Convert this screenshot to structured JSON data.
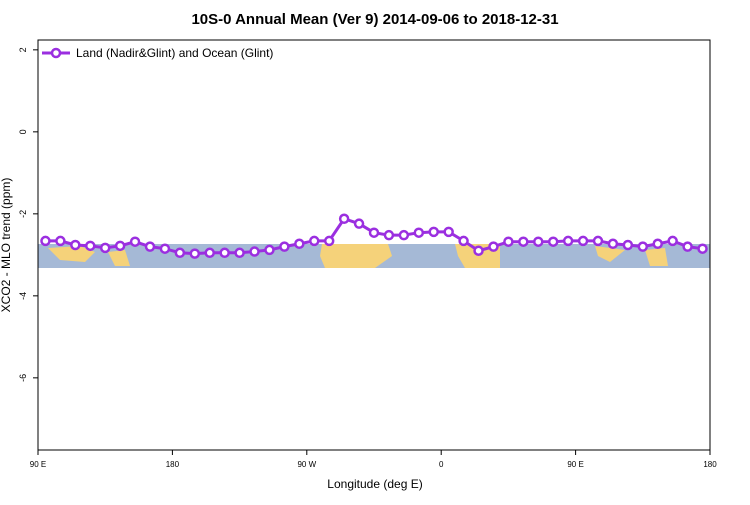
{
  "chart_data": {
    "type": "line",
    "title": "10S-0 Annual Mean (Ver 9)   2014-09-06 to 2018-12-31",
    "x_label": "Longitude (deg E)",
    "y_label": "XCO2 - MLO trend (ppm)",
    "x": [
      95,
      105,
      115,
      125,
      135,
      145,
      155,
      165,
      175,
      185,
      195,
      205,
      215,
      225,
      235,
      245,
      255,
      265,
      275,
      285,
      295,
      305,
      315,
      325,
      335,
      345,
      355,
      365,
      375,
      385,
      395,
      405,
      415,
      425,
      435,
      445,
      455,
      465,
      475,
      485,
      495,
      505,
      515,
      525,
      535
    ],
    "series": [
      {
        "name": "Land (Nadir&Glint) and Ocean (Glint)",
        "color": "#9b2fe0",
        "values": [
          -2.66,
          -2.66,
          -2.76,
          -2.78,
          -2.83,
          -2.78,
          -2.68,
          -2.8,
          -2.85,
          -2.95,
          -2.97,
          -2.95,
          -2.95,
          -2.95,
          -2.92,
          -2.88,
          -2.8,
          -2.73,
          -2.66,
          -2.66,
          -2.12,
          -2.24,
          -2.46,
          -2.52,
          -2.52,
          -2.46,
          -2.44,
          -2.44,
          -2.66,
          -2.9,
          -2.8,
          -2.68,
          -2.68,
          -2.68,
          -2.68,
          -2.66,
          -2.66,
          -2.66,
          -2.73,
          -2.76,
          -2.8,
          -2.73,
          -2.66,
          -2.8,
          -2.85
        ]
      }
    ],
    "xlim": [
      90,
      540
    ],
    "xticks": [
      {
        "value": 90,
        "label": "90 E"
      },
      180,
      {
        "value": 270,
        "label": "90 W"
      },
      {
        "value": 360,
        "label": "0"
      },
      {
        "value": 450,
        "label": "90 E"
      },
      {
        "value": 540,
        "label": "180"
      }
    ],
    "ylim": [
      -7.76,
      2.24
    ],
    "yticks": [
      2,
      0,
      -2,
      -4,
      -6
    ],
    "legend": "top-left"
  }
}
